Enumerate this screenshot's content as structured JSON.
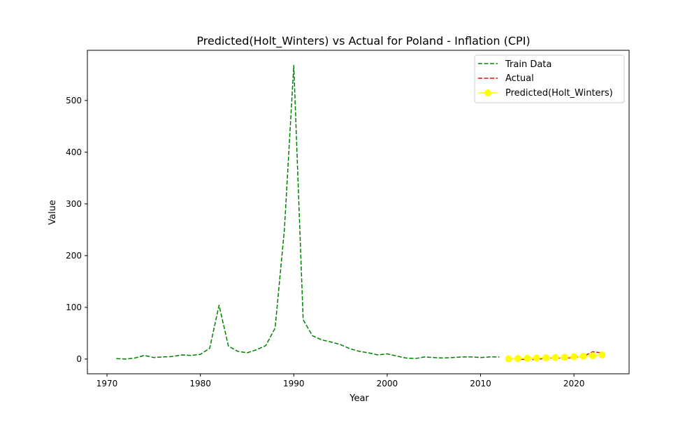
{
  "chart_data": {
    "type": "line",
    "title": "Predicted(Holt_Winters) vs Actual for Poland - Inflation (CPI)",
    "xlabel": "Year",
    "ylabel": "Value",
    "xlim": [
      1967.9,
      2025.9
    ],
    "ylim": [
      -28.5,
      597
    ],
    "x_ticks": [
      1970,
      1980,
      1990,
      2000,
      2010,
      2020
    ],
    "y_ticks": [
      0,
      100,
      200,
      300,
      400,
      500
    ],
    "grid": false,
    "legend_position": "top-right",
    "series": [
      {
        "name": "Train Data",
        "color": "#008000",
        "style": "dashed",
        "x": [
          1971,
          1972,
          1973,
          1974,
          1975,
          1976,
          1977,
          1978,
          1979,
          1980,
          1981,
          1982,
          1983,
          1984,
          1985,
          1986,
          1987,
          1988,
          1989,
          1990,
          1991,
          1992,
          1993,
          1994,
          1995,
          1996,
          1997,
          1998,
          1999,
          2000,
          2001,
          2002,
          2003,
          2004,
          2005,
          2006,
          2007,
          2008,
          2009,
          2010,
          2011,
          2012
        ],
        "y": [
          1,
          0,
          2,
          7,
          3,
          4,
          5,
          8,
          7,
          9,
          21,
          104,
          25,
          15,
          12,
          18,
          26,
          60,
          251,
          568,
          76,
          45,
          37,
          33,
          28,
          20,
          15,
          12,
          8,
          10,
          6,
          2,
          1,
          4,
          3,
          2,
          3,
          4,
          4,
          3,
          4,
          4
        ]
      },
      {
        "name": "Actual",
        "color": "#ff0000",
        "style": "dashed",
        "x": [
          2013,
          2014,
          2015,
          2016,
          2017,
          2018,
          2019,
          2020,
          2021,
          2022,
          2023
        ],
        "y": [
          1,
          0,
          -1,
          -1,
          2,
          2,
          2,
          3,
          5,
          14,
          12
        ]
      },
      {
        "name": "Predicted(Holt_Winters)",
        "color": "#ffff00",
        "style": "solid-marker",
        "x": [
          2013,
          2014,
          2015,
          2016,
          2017,
          2018,
          2019,
          2020,
          2021,
          2022,
          2023
        ],
        "y": [
          0.5,
          1,
          1.5,
          2,
          2.5,
          3,
          3.5,
          4.5,
          5.5,
          6.5,
          8
        ]
      }
    ]
  }
}
